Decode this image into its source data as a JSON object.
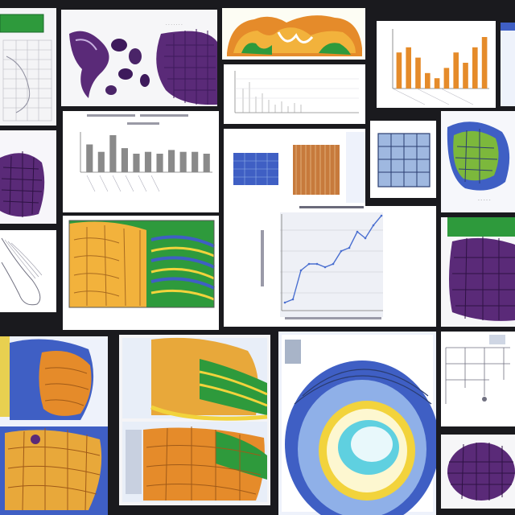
{
  "collage": {
    "background": "#1a1a1e",
    "palette": {
      "purple": "#5a2a78",
      "deep_purple": "#3e1a5c",
      "gold": "#e8a83a",
      "orange": "#e58b2a",
      "yellow": "#f2d33c",
      "green": "#2e9a3c",
      "blue": "#3f5fc4",
      "light_blue": "#8fb0e8",
      "cyan": "#5fd0e0",
      "paper": "#f4f4f6"
    },
    "tiles": [
      {
        "name": "tile-table-topleft",
        "kind": "table"
      },
      {
        "name": "tile-purple-organism",
        "kind": "illustration"
      },
      {
        "name": "tile-orange-organs-top",
        "kind": "illustration"
      },
      {
        "name": "tile-bar-chart-topright",
        "kind": "chart"
      },
      {
        "name": "tile-line-chart-small",
        "kind": "chart"
      },
      {
        "name": "tile-bar-chart-center",
        "kind": "chart"
      },
      {
        "name": "tile-purple-cells-left",
        "kind": "illustration"
      },
      {
        "name": "tile-three-panels",
        "kind": "panels"
      },
      {
        "name": "tile-cross-section-right",
        "kind": "illustration"
      },
      {
        "name": "tile-sketch-left",
        "kind": "diagram"
      },
      {
        "name": "tile-colorful-tissue",
        "kind": "illustration"
      },
      {
        "name": "tile-line-chart-center",
        "kind": "chart"
      },
      {
        "name": "tile-purple-cells-right",
        "kind": "illustration"
      },
      {
        "name": "tile-blue-orange-left",
        "kind": "illustration"
      },
      {
        "name": "tile-orange-layers-center",
        "kind": "illustration"
      },
      {
        "name": "tile-eye-center",
        "kind": "illustration"
      },
      {
        "name": "tile-diagram-right",
        "kind": "diagram"
      },
      {
        "name": "tile-purple-cells-bottomright",
        "kind": "illustration"
      }
    ]
  },
  "chart_data": [
    {
      "type": "bar",
      "categories": [
        "1",
        "2",
        "3",
        "4",
        "5",
        "6",
        "7",
        "8",
        "9",
        "10"
      ],
      "values": [
        7,
        8,
        6,
        3,
        2,
        4,
        7,
        5,
        8,
        10
      ],
      "color": "#e58b2a"
    },
    {
      "type": "bar",
      "categories": [
        "1",
        "2",
        "3",
        "4",
        "5",
        "6",
        "7",
        "8",
        "9",
        "10",
        "11"
      ],
      "values": [
        30,
        22,
        40,
        26,
        20,
        22,
        20,
        24,
        22,
        22,
        20
      ],
      "color": "#8a8a8a"
    },
    {
      "type": "line",
      "x": [
        0,
        1,
        2,
        3,
        4,
        5,
        6,
        7,
        8,
        9,
        10,
        11,
        12
      ],
      "values": [
        2,
        3,
        12,
        14,
        14,
        13,
        14,
        18,
        19,
        24,
        22,
        26,
        29
      ],
      "color": "#4a6fd0"
    }
  ]
}
